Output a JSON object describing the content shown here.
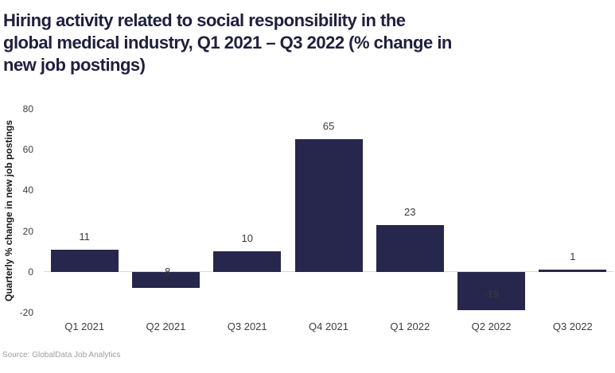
{
  "chart_data": {
    "type": "bar",
    "title": "Hiring activity related to social responsibility in the global medical industry, Q1 2021 – Q3 2022 (% change in new job postings)",
    "title_lines": [
      "Hiring activity related to social responsibility in the",
      "global medical industry, Q1 2021 – Q3 2022 (% change in",
      "new job postings)"
    ],
    "categories": [
      "Q1 2021",
      "Q2 2021",
      "Q3 2021",
      "Q4 2021",
      "Q1 2022",
      "Q2 2022",
      "Q3 2022"
    ],
    "values": [
      11,
      -8,
      10,
      65,
      23,
      -19,
      1
    ],
    "xlabel": "",
    "ylabel": "Quarterly % change in new job postings",
    "ylim": [
      -20,
      80
    ],
    "yticks": [
      80,
      60,
      40,
      20,
      0,
      -20
    ],
    "grid": false,
    "legend": false,
    "source": "Source: GlobalData Job Analytics"
  },
  "colors": {
    "title": "#1f1f3d",
    "bar": "#27264c",
    "zero_line": "#d9d9d9",
    "axis_tick_text": "#3d3d3d",
    "value_label_text": "#3a3a3a",
    "y_axis_title_text": "#161616",
    "source_text": "#9e9e9e",
    "background": "#ffffff"
  }
}
